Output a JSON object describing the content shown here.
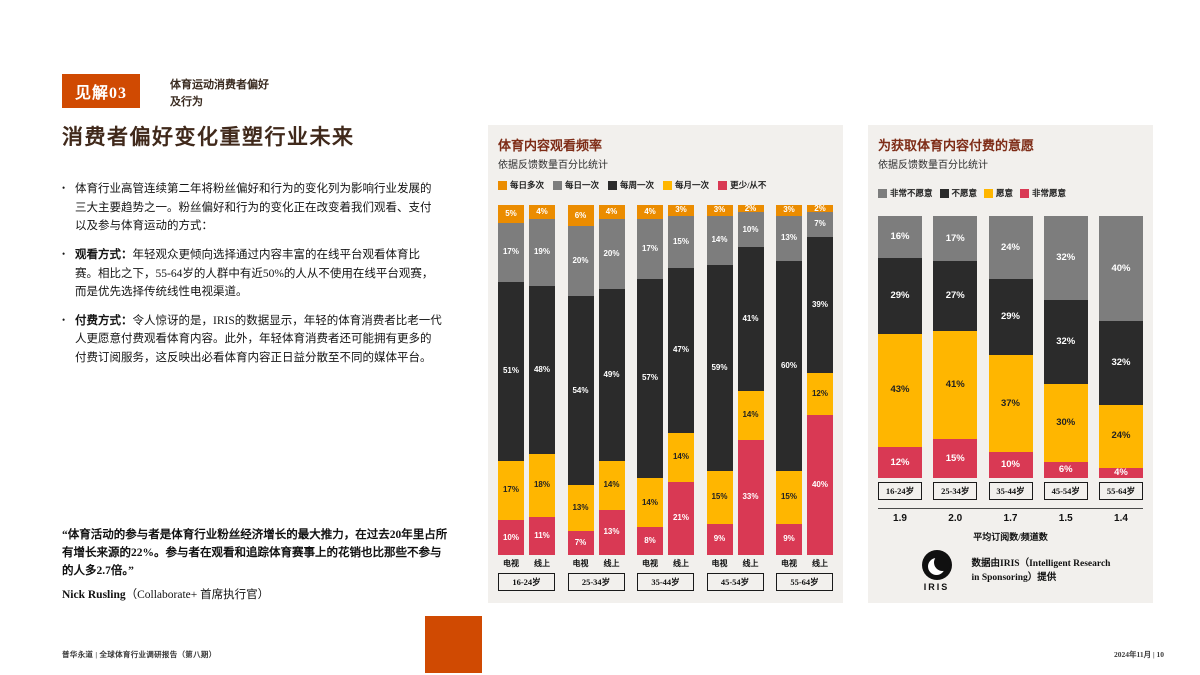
{
  "page": {
    "insight_label": "见解03",
    "insight_subtitle_line1": "体育运动消费者偏好",
    "insight_subtitle_line2": "及行为",
    "title": "消费者偏好变化重塑行业未来",
    "bullets": [
      {
        "lead": "",
        "text": "体育行业高管连续第二年将粉丝偏好和行为的变化列为影响行业发展的三大主要趋势之一。粉丝偏好和行为的变化正在改变着我们观看、支付以及参与体育运动的方式："
      },
      {
        "lead": "观看方式：",
        "text": "年轻观众更倾向选择通过内容丰富的在线平台观看体育比赛。相比之下，55-64岁的人群中有近50%的人从不使用在线平台观赛，而是优先选择传统线性电视渠道。"
      },
      {
        "lead": "付费方式：",
        "text": "令人惊讶的是，IRIS的数据显示，年轻的体育消费者比老一代人更愿意付费观看体育内容。此外，年轻体育消费者还可能拥有更多的付费订阅服务，这反映出必看体育内容正日益分散至不同的媒体平台。"
      }
    ],
    "quote": "“体育活动的参与者是体育行业粉丝经济增长的最大推力，在过去20年里占所有增长来源的22%。参与者在观看和追踪体育赛事上的花销也比那些不参与的人多2.7倍。”",
    "quote_author": "Nick Rusling",
    "quote_author_role": "（Collaborate+ 首席执行官）",
    "footer_left": "普华永道 | 全球体育行业调研报告（第八期）",
    "footer_right": "2024年11月 | 10",
    "accent_color": "#d04a02"
  },
  "chart_data": [
    {
      "type": "bar",
      "stacked": true,
      "title": "体育内容观看频率",
      "subtitle": "依据反馈数量百分比统计",
      "unit": "%",
      "series_order_top_to_bottom": [
        "每日多次",
        "每日一次",
        "每周一次",
        "每月一次",
        "更少/从不"
      ],
      "colors": [
        "#eb8c00",
        "#7d7d7d",
        "#2b2b2b",
        "#ffb600",
        "#d93954"
      ],
      "label_colors": [
        "#ffffff",
        "#ffffff",
        "#ffffff",
        "#222222",
        "#ffffff"
      ],
      "bar_pair": [
        "电视",
        "线上"
      ],
      "groups": [
        {
          "label": "16-24岁",
          "tv": [
            5,
            17,
            51,
            17,
            10
          ],
          "online": [
            4,
            19,
            48,
            18,
            11
          ]
        },
        {
          "label": "25-34岁",
          "tv": [
            6,
            20,
            54,
            13,
            7
          ],
          "online": [
            4,
            20,
            49,
            14,
            13
          ]
        },
        {
          "label": "35-44岁",
          "tv": [
            4,
            17,
            57,
            14,
            8
          ],
          "online": [
            3,
            15,
            47,
            14,
            21
          ]
        },
        {
          "label": "45-54岁",
          "tv": [
            3,
            14,
            59,
            15,
            9
          ],
          "online": [
            2,
            10,
            41,
            14,
            33
          ]
        },
        {
          "label": "55-64岁",
          "tv": [
            3,
            13,
            60,
            15,
            9
          ],
          "online": [
            2,
            7,
            39,
            12,
            40
          ]
        }
      ]
    },
    {
      "type": "bar",
      "stacked": true,
      "title": "为获取体育内容付费的意愿",
      "subtitle": "依据反馈数量百分比统计",
      "unit": "%",
      "series_order_top_to_bottom": [
        "非常不愿意",
        "不愿意",
        "愿意",
        "非常愿意"
      ],
      "colors": [
        "#7d7d7d",
        "#2b2b2b",
        "#ffb600",
        "#d93954"
      ],
      "label_colors": [
        "#ffffff",
        "#ffffff",
        "#222222",
        "#ffffff"
      ],
      "categories": [
        "16-24岁",
        "25-34岁",
        "35-44岁",
        "45-54岁",
        "55-64岁"
      ],
      "values": [
        [
          16,
          29,
          43,
          12
        ],
        [
          17,
          27,
          41,
          15
        ],
        [
          24,
          29,
          37,
          10
        ],
        [
          32,
          32,
          30,
          6
        ],
        [
          40,
          32,
          24,
          4
        ]
      ],
      "averages": [
        "1.9",
        "2.0",
        "1.7",
        "1.5",
        "1.4"
      ],
      "averages_label": "平均订阅数/频道数",
      "source": {
        "logo": "IRIS",
        "credit_line1": "数据由IRIS（Intelligent Research",
        "credit_line2": "in Sponsoring）提供"
      }
    }
  ]
}
